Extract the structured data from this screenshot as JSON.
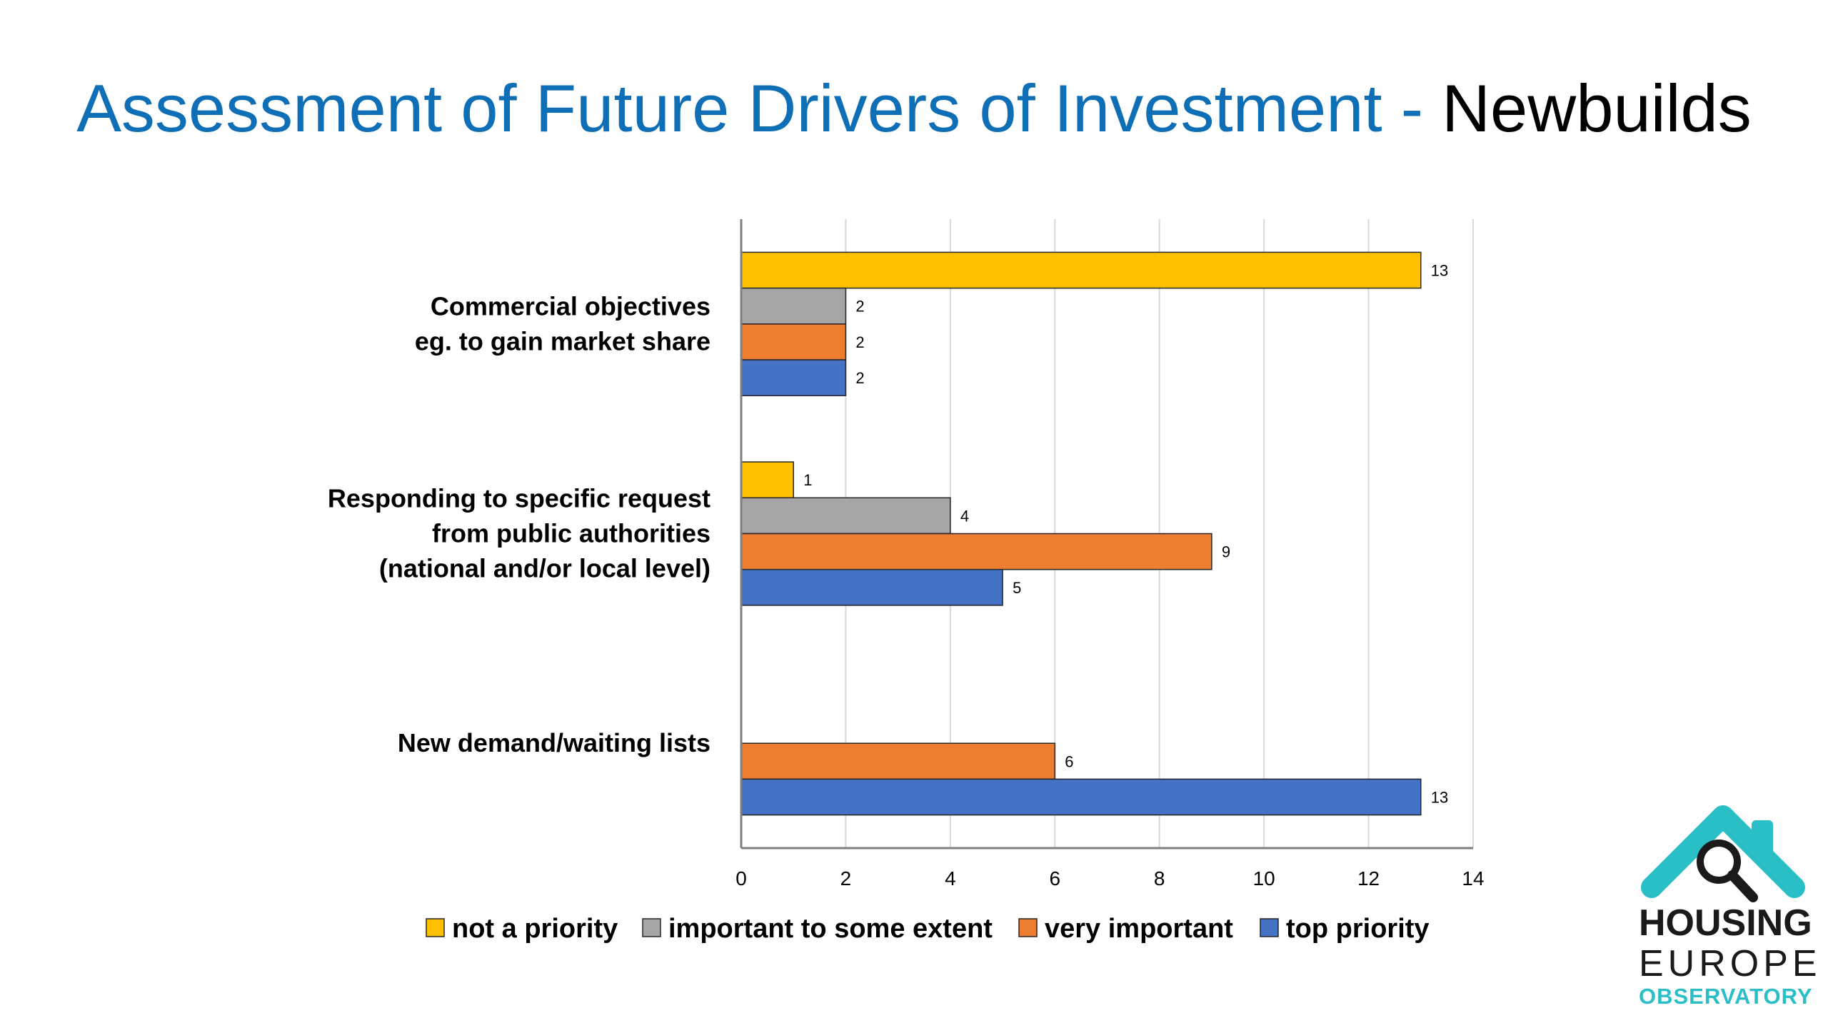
{
  "title": {
    "main": "Assessment of Future Drivers of Investment -",
    "accent": "Newbuilds"
  },
  "colors": {
    "title_blue": "#0f6fb6",
    "not_a_priority": "#ffc000",
    "important_to_some_extent": "#a5a5a5",
    "very_important": "#ed7d31",
    "top_priority": "#4472c4",
    "logo_teal": "#2abfc7"
  },
  "chart_data": {
    "type": "bar",
    "orientation": "horizontal",
    "categories": [
      [
        "Commercial objectives",
        "eg. to gain market share"
      ],
      [
        "Responding to specific request",
        "from public authorities",
        "(national and/or local level)"
      ],
      [
        "New demand/waiting lists"
      ]
    ],
    "series": [
      {
        "name": "not a priority",
        "color": "#ffc000",
        "values": [
          13,
          1,
          null
        ]
      },
      {
        "name": "important to some extent",
        "color": "#a5a5a5",
        "values": [
          2,
          4,
          null
        ]
      },
      {
        "name": "very important",
        "color": "#ed7d31",
        "values": [
          2,
          9,
          6
        ]
      },
      {
        "name": "top priority",
        "color": "#4472c4",
        "values": [
          2,
          5,
          13
        ]
      }
    ],
    "xlim": [
      0,
      14
    ],
    "xticks": [
      0,
      2,
      4,
      6,
      8,
      10,
      12,
      14
    ],
    "grid": "vertical",
    "data_labels": true,
    "legend_position": "bottom"
  },
  "logo": {
    "line1": "HOUSING",
    "line2": "EUROPE",
    "line3": "OBSERVATORY",
    "icons": [
      "house-icon",
      "magnifier-icon"
    ]
  }
}
